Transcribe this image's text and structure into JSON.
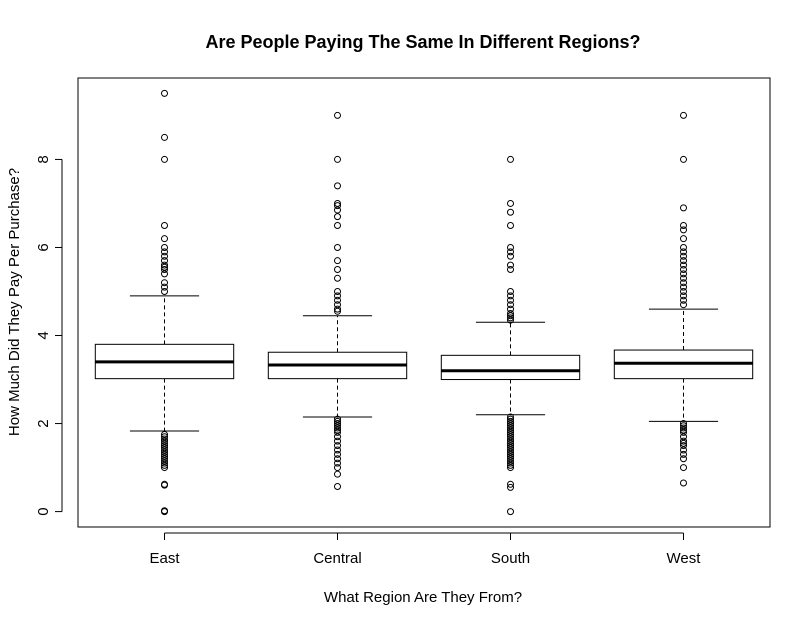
{
  "chart_data": {
    "type": "boxplot",
    "title": "Are People Paying The Same In Different Regions?",
    "xlabel": "What Region Are They From?",
    "ylabel": "How Much Did They Pay Per Purchase?",
    "ylim": [
      -0.35,
      9.85
    ],
    "yticks": [
      0,
      2,
      4,
      6,
      8
    ],
    "grid": false,
    "categories": [
      "East",
      "Central",
      "South",
      "West"
    ],
    "boxes": [
      {
        "name": "East",
        "whisker_low": 1.83,
        "q1": 3.02,
        "median": 3.4,
        "q3": 3.8,
        "whisker_high": 4.9,
        "outliers": [
          0.0,
          0.02,
          0.6,
          0.62,
          1.0,
          1.05,
          1.1,
          1.15,
          1.2,
          1.25,
          1.3,
          1.35,
          1.4,
          1.45,
          1.5,
          1.55,
          1.6,
          1.65,
          1.7,
          1.75,
          5.0,
          5.1,
          5.2,
          5.4,
          5.5,
          5.55,
          5.6,
          5.7,
          5.8,
          5.9,
          6.0,
          6.2,
          6.5,
          8.0,
          8.5,
          9.5
        ]
      },
      {
        "name": "Central",
        "whisker_low": 2.15,
        "q1": 3.02,
        "median": 3.33,
        "q3": 3.62,
        "whisker_high": 4.45,
        "outliers": [
          0.57,
          0.85,
          1.0,
          1.1,
          1.2,
          1.3,
          1.4,
          1.5,
          1.6,
          1.7,
          1.8,
          1.85,
          1.9,
          1.95,
          2.0,
          2.05,
          2.1,
          4.55,
          4.6,
          4.7,
          4.8,
          4.9,
          5.0,
          5.3,
          5.5,
          5.7,
          6.0,
          6.5,
          6.7,
          6.85,
          6.95,
          7.0,
          7.4,
          8.0,
          9.0
        ]
      },
      {
        "name": "South",
        "whisker_low": 2.2,
        "q1": 3.0,
        "median": 3.2,
        "q3": 3.55,
        "whisker_high": 4.3,
        "outliers": [
          0.0,
          0.55,
          0.62,
          1.0,
          1.05,
          1.1,
          1.15,
          1.2,
          1.25,
          1.3,
          1.35,
          1.4,
          1.45,
          1.5,
          1.55,
          1.6,
          1.65,
          1.7,
          1.75,
          1.8,
          1.85,
          1.9,
          1.95,
          2.0,
          2.05,
          2.1,
          2.15,
          4.35,
          4.4,
          4.45,
          4.5,
          4.6,
          4.7,
          4.8,
          4.9,
          5.0,
          5.5,
          5.6,
          5.8,
          5.9,
          6.0,
          6.5,
          6.8,
          7.0,
          8.0
        ]
      },
      {
        "name": "West",
        "whisker_low": 2.05,
        "q1": 3.02,
        "median": 3.37,
        "q3": 3.67,
        "whisker_high": 4.6,
        "outliers": [
          0.65,
          1.0,
          1.2,
          1.3,
          1.4,
          1.5,
          1.55,
          1.6,
          1.7,
          1.8,
          1.85,
          1.9,
          1.95,
          2.0,
          4.7,
          4.8,
          4.9,
          5.0,
          5.1,
          5.2,
          5.3,
          5.4,
          5.5,
          5.6,
          5.7,
          5.8,
          5.9,
          6.0,
          6.2,
          6.4,
          6.5,
          6.9,
          8.0,
          9.0
        ]
      }
    ]
  }
}
